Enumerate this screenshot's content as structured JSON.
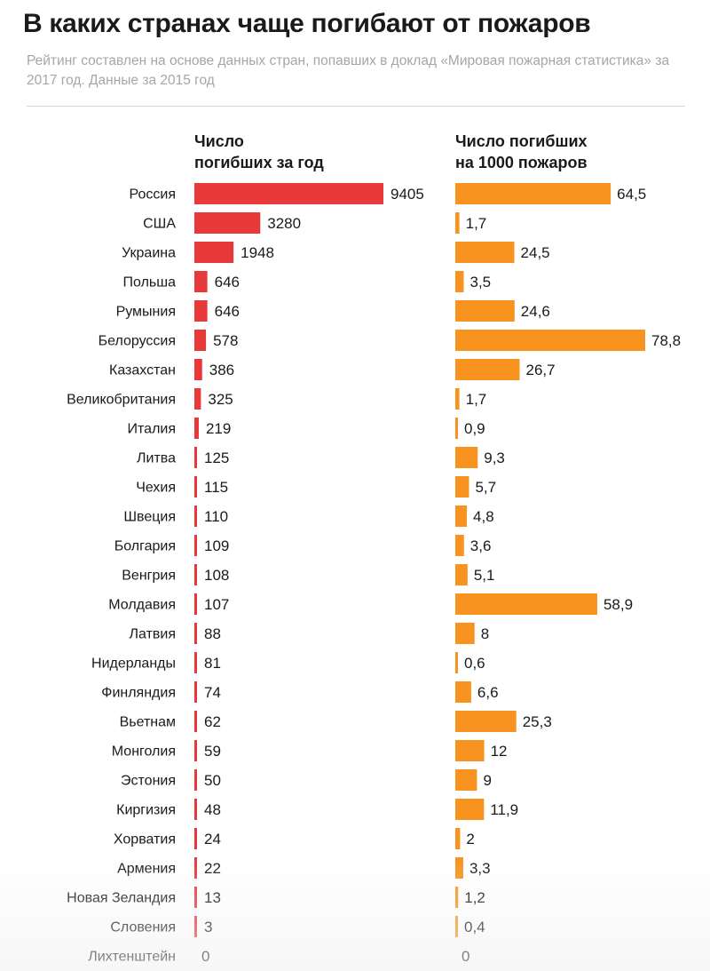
{
  "title": "В каких странах чаще погибают от пожаров",
  "subtitle": "Рейтинг составлен на основе данных стран, попавших в доклад «Мировая пожарная статистика» за 2017 год. Данные за 2015 год",
  "colors": {
    "deaths_bar": "#e8393a",
    "rate_bar": "#f7931e",
    "text": "#1a1a1a",
    "muted": "#a6a6a6"
  },
  "chart_data": {
    "type": "bar",
    "orientation": "horizontal",
    "categories": [
      "Россия",
      "США",
      "Украина",
      "Польша",
      "Румыния",
      "Белоруссия",
      "Казахстан",
      "Великобритания",
      "Италия",
      "Литва",
      "Чехия",
      "Швеция",
      "Болгария",
      "Венгрия",
      "Молдавия",
      "Латвия",
      "Нидерланды",
      "Финляндия",
      "Вьетнам",
      "Монголия",
      "Эстония",
      "Киргизия",
      "Хорватия",
      "Армения",
      "Новая Зеландия",
      "Словения",
      "Лихтенштейн"
    ],
    "series": [
      {
        "name_lines": [
          "Число",
          "погибших за год"
        ],
        "values": [
          9405,
          3280,
          1948,
          646,
          646,
          578,
          386,
          325,
          219,
          125,
          115,
          110,
          109,
          108,
          107,
          88,
          81,
          74,
          62,
          59,
          50,
          48,
          24,
          22,
          13,
          3,
          0
        ],
        "labels": [
          "9405",
          "3280",
          "1948",
          "646",
          "646",
          "578",
          "386",
          "325",
          "219",
          "125",
          "115",
          "110",
          "109",
          "108",
          "107",
          "88",
          "81",
          "74",
          "62",
          "59",
          "50",
          "48",
          "24",
          "22",
          "13",
          "3",
          "0"
        ]
      },
      {
        "name_lines": [
          "Число погибших",
          "на 1000 пожаров"
        ],
        "values": [
          64.5,
          1.7,
          24.5,
          3.5,
          24.6,
          78.8,
          26.7,
          1.7,
          0.9,
          9.3,
          5.7,
          4.8,
          3.6,
          5.1,
          58.9,
          8,
          0.6,
          6.6,
          25.3,
          12,
          9,
          11.9,
          2,
          3.3,
          1.2,
          0.4,
          0
        ],
        "labels": [
          "64,5",
          "1,7",
          "24,5",
          "3,5",
          "24,6",
          "78,8",
          "26,7",
          "1,7",
          "0,9",
          "9,3",
          "5,7",
          "4,8",
          "3,6",
          "5,1",
          "58,9",
          "8",
          "0,6",
          "6,6",
          "25,3",
          "12",
          "9",
          "11,9",
          "2",
          "3,3",
          "1,2",
          "0,4",
          "0"
        ]
      }
    ]
  }
}
